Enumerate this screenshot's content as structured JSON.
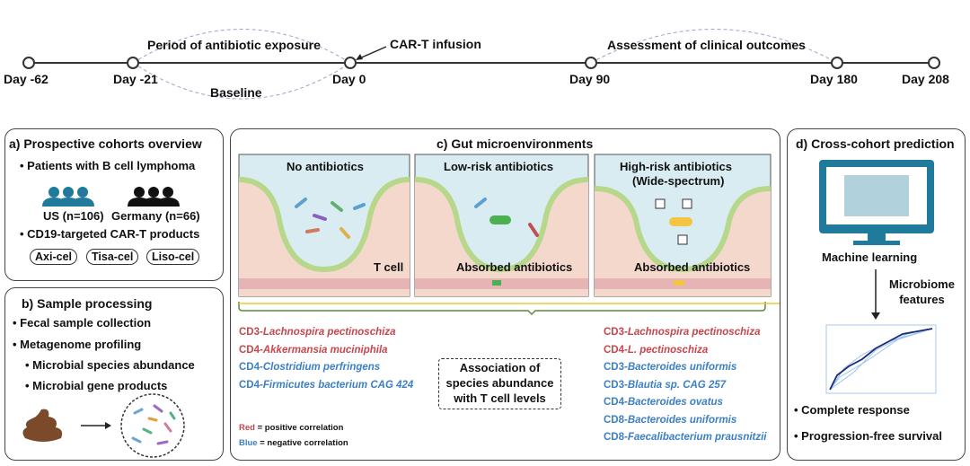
{
  "timeline": {
    "days": [
      "Day -62",
      "Day -21",
      "Day 0",
      "Day 90",
      "Day 180",
      "Day 208"
    ],
    "antibiotic_period": "Period of antibiotic exposure",
    "baseline": "Baseline",
    "infusion": "CAR-T infusion",
    "assessment": "Assessment of clinical outcomes"
  },
  "panel_a": {
    "title": "a) Prospective cohorts overview",
    "bullet1": "Patients with B cell lymphoma",
    "us": "US (n=106)",
    "germany": "Germany (n=66)",
    "bullet2": "CD19-targeted CAR-T products",
    "products": [
      "Axi-cel",
      "Tisa-cel",
      "Liso-cel"
    ],
    "colors": {
      "us": "#1f7a9c",
      "germany": "#111111"
    }
  },
  "panel_b": {
    "title": "b) Sample processing",
    "items": [
      "Fecal sample collection",
      "Metagenome profiling",
      "Microbial species abundance",
      "Microbial gene products"
    ]
  },
  "panel_c": {
    "title": "c) Gut microenvironments",
    "scenes": [
      "No antibiotics",
      "Low-risk antibiotics",
      "High-risk antibiotics",
      "(Wide-spectrum)"
    ],
    "tcell": "T cell",
    "absorbed": "Absorbed antibiotics",
    "left_list": [
      {
        "prefix": "CD3-",
        "species": "Lachnospira pectinoschiza",
        "sign": "red"
      },
      {
        "prefix": "CD4-",
        "species": "Akkermansia muciniphila",
        "sign": "red"
      },
      {
        "prefix": "CD4-",
        "species": "Clostridium perfringens",
        "sign": "blue"
      },
      {
        "prefix": "CD4-",
        "species": "Firmicutes bacterium CAG 424",
        "sign": "blue"
      }
    ],
    "right_list": [
      {
        "prefix": "CD3-",
        "species": "Lachnospira pectinoschiza",
        "sign": "red"
      },
      {
        "prefix": "CD4-",
        "species": "L. pectinoschiza",
        "sign": "red"
      },
      {
        "prefix": "CD3-",
        "species": "Bacteroides uniformis",
        "sign": "blue"
      },
      {
        "prefix": "CD3-",
        "species": "Blautia sp. CAG 257",
        "sign": "blue"
      },
      {
        "prefix": "CD4-",
        "species": "Bacteroides ovatus",
        "sign": "blue"
      },
      {
        "prefix": "CD8-",
        "species": "Bacteroides uniformis",
        "sign": "blue"
      },
      {
        "prefix": "CD8-",
        "species": "Faecalibacterium prausnitzii",
        "sign": "blue"
      }
    ],
    "association": [
      "Association of",
      "species abundance",
      "with T cell levels"
    ],
    "legend": {
      "red": "Red",
      "red_text": " = positive correlation",
      "blue": "Blue",
      "blue_text": " = negative correlation"
    },
    "colors": {
      "positive": "#c8464c",
      "negative": "#3b7fc4"
    }
  },
  "panel_d": {
    "title": "d) Cross-cohort prediction",
    "ml": "Machine learning",
    "features": [
      "Microbiome",
      "features"
    ],
    "outcomes": [
      "Complete response",
      "Progression-free survival"
    ]
  }
}
